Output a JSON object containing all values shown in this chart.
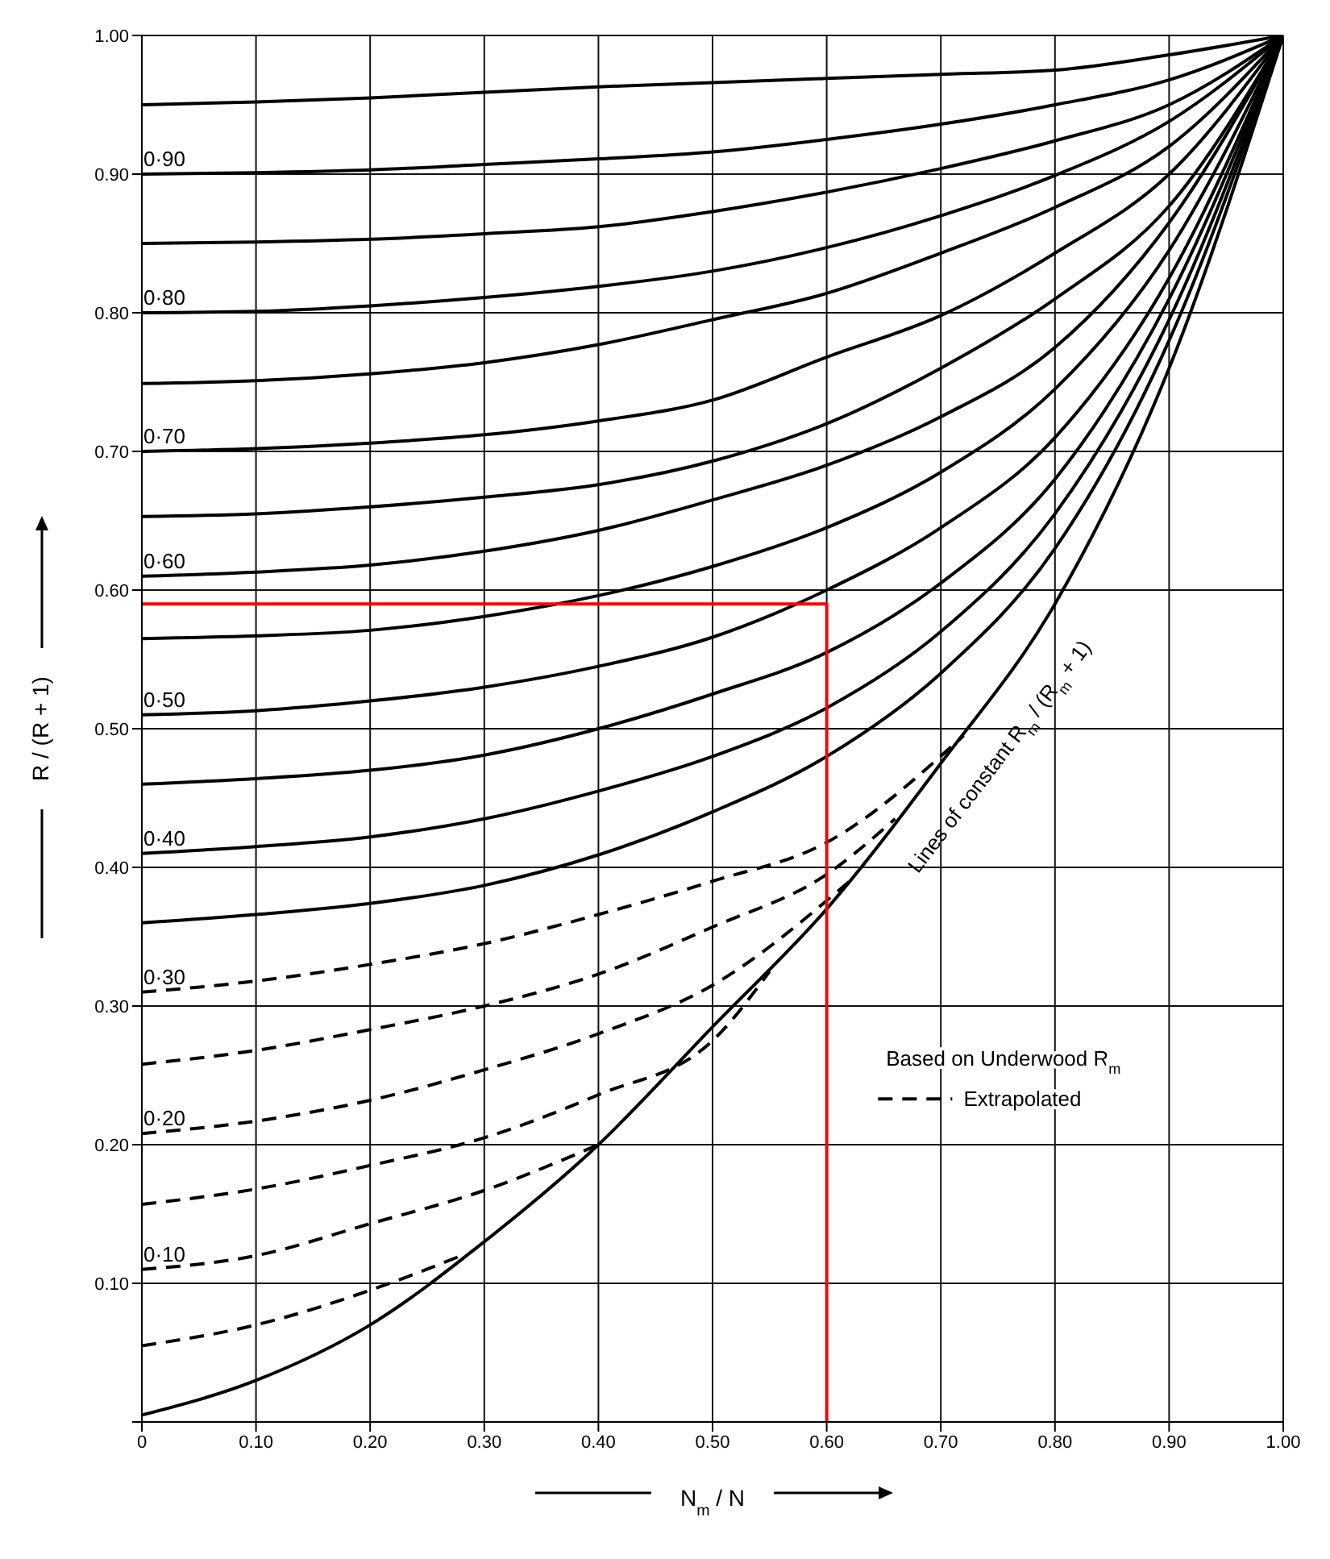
{
  "chart_data": {
    "type": "line",
    "xlabel": "N$_{m}$ / N",
    "ylabel": "R / (R + 1)",
    "xlim": [
      0,
      1
    ],
    "ylim": [
      0,
      1
    ],
    "xticks": [
      0,
      {
        "value": 0.1,
        "label": "0.10"
      },
      {
        "value": 0.2,
        "label": "0.20"
      },
      {
        "value": 0.3,
        "label": "0.30"
      },
      {
        "value": 0.4,
        "label": "0.40"
      },
      {
        "value": 0.5,
        "label": "0.50"
      },
      {
        "value": 0.6,
        "label": "0.60"
      },
      {
        "value": 0.7,
        "label": "0.70"
      },
      {
        "value": 0.8,
        "label": "0.80"
      },
      {
        "value": 0.9,
        "label": "0.90"
      },
      {
        "value": 1,
        "label": "1.00"
      }
    ],
    "yticks": [
      {
        "value": 0,
        "label": null
      },
      {
        "value": 0.1,
        "label": "0.10"
      },
      {
        "value": 0.2,
        "label": "0.20"
      },
      {
        "value": 0.3,
        "label": "0.30"
      },
      {
        "value": 0.4,
        "label": "0.40"
      },
      {
        "value": 0.5,
        "label": "0.50"
      },
      {
        "value": 0.6,
        "label": "0.60"
      },
      {
        "value": 0.7,
        "label": "0.70"
      },
      {
        "value": 0.8,
        "label": "0.80"
      },
      {
        "value": 0.9,
        "label": "0.90"
      },
      {
        "value": 1,
        "label": "1.00"
      }
    ],
    "grid": true,
    "line_style": "solid",
    "x": [
      0,
      0.1,
      0.2,
      0.3,
      0.4,
      0.5,
      0.6,
      0.7,
      0.8,
      0.9,
      1
    ],
    "series": [
      {
        "color": "#000000",
        "values": [
          0.95,
          0.952,
          0.955,
          0.959,
          0.963,
          0.966,
          0.969,
          0.972,
          0.975,
          0.986,
          1
        ]
      },
      {
        "name": "0·90",
        "color": "#000000",
        "values": [
          0.9,
          0.901,
          0.903,
          0.907,
          0.911,
          0.916,
          0.925,
          0.936,
          0.95,
          0.968,
          1
        ]
      },
      {
        "color": "#000000",
        "values": [
          0.85,
          0.851,
          0.853,
          0.857,
          0.862,
          0.873,
          0.887,
          0.904,
          0.924,
          0.95,
          1
        ]
      },
      {
        "name": "0·80",
        "color": "#000000",
        "values": [
          0.8,
          0.801,
          0.805,
          0.811,
          0.819,
          0.83,
          0.847,
          0.87,
          0.899,
          0.938,
          1
        ]
      },
      {
        "color": "#000000",
        "values": [
          0.749,
          0.751,
          0.756,
          0.764,
          0.777,
          0.795,
          0.814,
          0.843,
          0.876,
          0.92,
          1
        ]
      },
      {
        "name": "0·70",
        "color": "#000000",
        "values": [
          0.7,
          0.702,
          0.706,
          0.712,
          0.722,
          0.737,
          0.768,
          0.798,
          0.843,
          0.9,
          1
        ]
      },
      {
        "color": "#000000",
        "values": [
          0.653,
          0.655,
          0.66,
          0.667,
          0.676,
          0.693,
          0.72,
          0.76,
          0.81,
          0.877,
          1
        ]
      },
      {
        "name": "0·60",
        "color": "#000000",
        "values": [
          0.61,
          0.613,
          0.618,
          0.628,
          0.643,
          0.665,
          0.69,
          0.725,
          0.775,
          0.865,
          1
        ]
      },
      {
        "color": "#000000",
        "values": [
          0.565,
          0.567,
          0.571,
          0.581,
          0.596,
          0.617,
          0.645,
          0.685,
          0.745,
          0.845,
          1
        ]
      },
      {
        "name": "0·50",
        "color": "#000000",
        "values": [
          0.51,
          0.513,
          0.52,
          0.53,
          0.545,
          0.566,
          0.6,
          0.645,
          0.71,
          0.825,
          1
        ]
      },
      {
        "color": "#000000",
        "values": [
          0.46,
          0.464,
          0.47,
          0.481,
          0.5,
          0.525,
          0.555,
          0.605,
          0.68,
          0.81,
          1
        ]
      },
      {
        "name": "0·40",
        "color": "#000000",
        "values": [
          0.41,
          0.415,
          0.422,
          0.435,
          0.455,
          0.48,
          0.515,
          0.57,
          0.655,
          0.795,
          1
        ]
      },
      {
        "color": "#000000",
        "values": [
          0.36,
          0.366,
          0.374,
          0.387,
          0.409,
          0.44,
          0.48,
          0.54,
          0.63,
          0.78,
          1
        ]
      },
      {
        "name": "0·30",
        "color": "#000000",
        "line_style": "dashed",
        "x": [
          0,
          0.1,
          0.2,
          0.3,
          0.4,
          0.5,
          0.6,
          0.72
        ],
        "values": [
          0.31,
          0.318,
          0.33,
          0.345,
          0.366,
          0.39,
          0.418,
          0.495
        ]
      },
      {
        "color": "#000000",
        "line_style": "dashed",
        "x": [
          0,
          0.1,
          0.2,
          0.3,
          0.4,
          0.5,
          0.6,
          0.66
        ],
        "values": [
          0.258,
          0.268,
          0.283,
          0.3,
          0.323,
          0.357,
          0.395,
          0.435
        ]
      },
      {
        "name": "0·20",
        "color": "#000000",
        "line_style": "dashed",
        "x": [
          0,
          0.1,
          0.2,
          0.3,
          0.4,
          0.5,
          0.62
        ],
        "values": [
          0.208,
          0.217,
          0.232,
          0.254,
          0.28,
          0.315,
          0.39
        ]
      },
      {
        "color": "#000000",
        "line_style": "dashed",
        "x": [
          0,
          0.1,
          0.2,
          0.3,
          0.4,
          0.5,
          0.55
        ],
        "values": [
          0.157,
          0.168,
          0.185,
          0.205,
          0.236,
          0.275,
          0.325
        ]
      },
      {
        "name": "0·10",
        "color": "#000000",
        "line_style": "dashed",
        "x": [
          0,
          0.1,
          0.2,
          0.3,
          0.4
        ],
        "values": [
          0.11,
          0.12,
          0.143,
          0.167,
          0.2
        ]
      },
      {
        "color": "#000000",
        "line_style": "dashed",
        "x": [
          0,
          0.1,
          0.2,
          0.28
        ],
        "values": [
          0.055,
          0.07,
          0.095,
          0.12
        ]
      },
      {
        "color": "#000000",
        "values": [
          0.005,
          0.03,
          0.07,
          0.13,
          0.2,
          0.285,
          0.37,
          0.475,
          0.59,
          0.76,
          1
        ]
      },
      {
        "color": "#ff0000",
        "x": [
          0,
          0.6,
          0.6
        ],
        "values": [
          0.59,
          0.59,
          0
        ]
      }
    ],
    "annotations": [
      "Lines of constant R$_{m}$ / (R$_{m}$ + 1)",
      "Based on Underwood R$_{m}$",
      "Extrapolated"
    ]
  }
}
